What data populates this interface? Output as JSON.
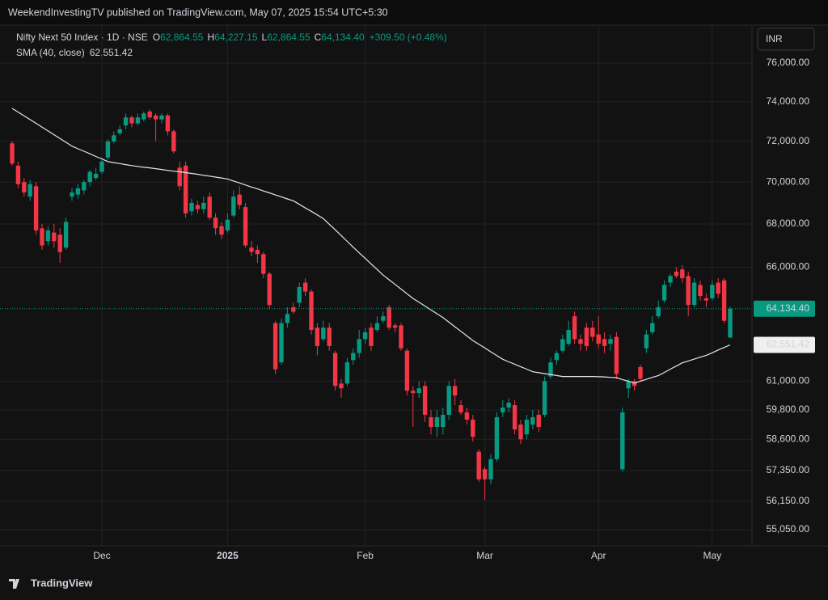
{
  "header": {
    "text": "WeekendInvestingTV published on TradingView.com, May 07, 2025 15:54 UTC+5:30"
  },
  "footer": {
    "brand": "TradingView"
  },
  "chart_data": {
    "type": "candlestick",
    "title": "Nifty Next 50 Index · 1D · NSE",
    "ohlc_legend": [
      {
        "key": "O",
        "value": "62,864.55"
      },
      {
        "key": "H",
        "value": "64,227.15"
      },
      {
        "key": "L",
        "value": "62,864.55"
      },
      {
        "key": "C",
        "value": "64,134.40"
      }
    ],
    "change": "+309.50 (+0.48%)",
    "currency": "INR",
    "up_color": "#089981",
    "down_color": "#f23645",
    "log_scale": true,
    "grid": true,
    "ylim": [
      54440,
      77980
    ],
    "yticks": [
      {
        "value": 76000,
        "label": "76,000.00"
      },
      {
        "value": 74000,
        "label": "74,000.00"
      },
      {
        "value": 72000,
        "label": "72,000.00"
      },
      {
        "value": 70000,
        "label": "70,000.00"
      },
      {
        "value": 68000,
        "label": "68,000.00"
      },
      {
        "value": 66000,
        "label": "66,000.00"
      },
      {
        "value": 61000,
        "label": "61,000.00"
      },
      {
        "value": 59800,
        "label": "59,800.00"
      },
      {
        "value": 58600,
        "label": "58,600.00"
      },
      {
        "value": 57350,
        "label": "57,350.00"
      },
      {
        "value": 56150,
        "label": "56,150.00"
      },
      {
        "value": 55050,
        "label": "55,050.00"
      }
    ],
    "categories": [
      null,
      null,
      null,
      null,
      null,
      null,
      null,
      null,
      null,
      null,
      null,
      null,
      null,
      null,
      null,
      "Dec",
      null,
      null,
      null,
      null,
      null,
      null,
      null,
      null,
      null,
      null,
      null,
      null,
      null,
      null,
      null,
      null,
      null,
      null,
      null,
      null,
      "2025",
      null,
      null,
      null,
      null,
      null,
      null,
      null,
      null,
      null,
      null,
      null,
      null,
      null,
      null,
      null,
      null,
      null,
      null,
      null,
      null,
      null,
      null,
      "Feb",
      null,
      null,
      null,
      null,
      null,
      null,
      null,
      null,
      null,
      null,
      null,
      null,
      null,
      null,
      null,
      null,
      null,
      null,
      null,
      "Mar",
      null,
      null,
      null,
      null,
      null,
      null,
      null,
      null,
      null,
      null,
      null,
      null,
      null,
      null,
      null,
      null,
      null,
      null,
      "Apr",
      null,
      null,
      null,
      null,
      null,
      null,
      null,
      null,
      null,
      null,
      null,
      null,
      null,
      null,
      null,
      null,
      null,
      null,
      "May",
      null,
      null,
      null
    ],
    "open": [
      71900,
      70800,
      70000,
      69300,
      69800,
      67800,
      67200,
      67600,
      67500,
      66900,
      69300,
      69400,
      69600,
      70000,
      70200,
      70500,
      71200,
      72000,
      72400,
      72800,
      73200,
      72900,
      73100,
      73500,
      73300,
      73100,
      73300,
      72500,
      70700,
      70800,
      68600,
      68900,
      68700,
      69300,
      68300,
      67900,
      67700,
      68400,
      69400,
      68800,
      66900,
      66800,
      66600,
      65700,
      63500,
      61800,
      63500,
      64200,
      64400,
      65300,
      64900,
      63300,
      62800,
      63300,
      62200,
      60900,
      60900,
      61900,
      62200,
      62800,
      63300,
      63200,
      63600,
      64200,
      63400,
      63400,
      62300,
      60600,
      60500,
      60800,
      59500,
      59100,
      59100,
      59600,
      60800,
      60000,
      59700,
      59400,
      58100,
      57400,
      57000,
      57800,
      59700,
      59900,
      60000,
      59200,
      58800,
      59200,
      59600,
      59600,
      61200,
      61900,
      62300,
      62600,
      63800,
      62800,
      63300,
      63300,
      63000,
      62800,
      62600,
      62900,
      57400,
      60700,
      61000,
      61600,
      62400,
      63100,
      63800,
      64500,
      65300,
      65800,
      65900,
      65600,
      64300,
      65200,
      64600,
      64600,
      65300,
      65400,
      62864.55
    ],
    "high": [
      72000,
      71000,
      70200,
      70100,
      70000,
      68000,
      67900,
      68000,
      67800,
      68300,
      69700,
      69900,
      70100,
      70600,
      70700,
      71200,
      72100,
      72500,
      72800,
      73400,
      73300,
      73400,
      73500,
      73600,
      73400,
      73400,
      73400,
      72600,
      71000,
      71000,
      69200,
      69100,
      69300,
      69500,
      68500,
      68100,
      68500,
      69600,
      69800,
      69000,
      67200,
      67000,
      66700,
      65800,
      63600,
      63700,
      64200,
      64400,
      65300,
      65500,
      65000,
      63500,
      63600,
      63500,
      62300,
      61100,
      62000,
      62400,
      63200,
      63300,
      63500,
      63800,
      64000,
      64300,
      63500,
      63500,
      62400,
      60800,
      61000,
      61000,
      59800,
      59800,
      59900,
      61000,
      61100,
      60200,
      59900,
      59600,
      58200,
      57500,
      58000,
      59700,
      60200,
      60300,
      60200,
      59400,
      59600,
      59800,
      59800,
      61200,
      62000,
      62300,
      63000,
      63600,
      64000,
      63000,
      63500,
      63600,
      63800,
      63100,
      63000,
      63100,
      59900,
      61100,
      61100,
      61700,
      63200,
      63800,
      64500,
      65400,
      65700,
      66000,
      66100,
      65800,
      65500,
      65400,
      64800,
      65400,
      65500,
      65500,
      64227.15
    ],
    "low": [
      70800,
      69700,
      69300,
      69100,
      67500,
      66800,
      67000,
      66900,
      66200,
      66800,
      69100,
      69200,
      69400,
      69800,
      70100,
      70400,
      71100,
      71900,
      72300,
      72600,
      72700,
      72800,
      73000,
      73100,
      72000,
      72900,
      72300,
      71400,
      69600,
      68300,
      68400,
      68500,
      68500,
      68200,
      67500,
      67300,
      67600,
      68300,
      68700,
      66900,
      66500,
      66200,
      65500,
      64100,
      61300,
      61700,
      63300,
      63900,
      64200,
      64700,
      63000,
      62100,
      62700,
      62300,
      60600,
      60300,
      60800,
      61700,
      62000,
      62600,
      62300,
      63100,
      63500,
      63200,
      63100,
      62300,
      60400,
      59100,
      60300,
      59300,
      58800,
      58700,
      58800,
      59400,
      60000,
      59600,
      59200,
      58500,
      56900,
      56200,
      56800,
      57700,
      59500,
      59700,
      58800,
      58400,
      58600,
      59000,
      58900,
      59500,
      61100,
      61700,
      62200,
      62500,
      62600,
      62300,
      62300,
      62700,
      62400,
      62200,
      62300,
      61100,
      57300,
      60300,
      60600,
      61000,
      62200,
      63000,
      63700,
      64400,
      65100,
      65500,
      65300,
      63800,
      64200,
      64500,
      64200,
      64500,
      64600,
      63500,
      62864.55
    ],
    "close": [
      70900,
      69900,
      69500,
      69900,
      67700,
      67000,
      67700,
      67200,
      66700,
      68100,
      69500,
      69700,
      70000,
      70500,
      70400,
      71000,
      72000,
      72300,
      72600,
      73200,
      72900,
      73200,
      73400,
      73200,
      73100,
      73300,
      72500,
      71500,
      69800,
      68500,
      69000,
      68700,
      69000,
      68300,
      67800,
      67500,
      68200,
      69300,
      68900,
      67000,
      66700,
      66600,
      65700,
      64300,
      61500,
      63500,
      63900,
      64000,
      65100,
      64900,
      63200,
      62500,
      63300,
      62500,
      60800,
      60700,
      61800,
      62200,
      62800,
      63100,
      62500,
      63500,
      63800,
      63300,
      63300,
      62400,
      60600,
      60500,
      60700,
      59600,
      59100,
      59500,
      59600,
      60800,
      60400,
      59700,
      59400,
      58700,
      57000,
      57000,
      57800,
      59500,
      59900,
      60100,
      59000,
      58600,
      59400,
      59500,
      59100,
      61000,
      61800,
      62200,
      62800,
      63200,
      62800,
      62600,
      62500,
      62900,
      62600,
      62500,
      62800,
      61300,
      59700,
      61000,
      60800,
      61100,
      63000,
      63500,
      64200,
      65200,
      65600,
      65600,
      65500,
      64300,
      65300,
      64700,
      64500,
      65200,
      64800,
      63600,
      64134.4
    ],
    "sma": {
      "name": "SMA (40, close)",
      "value_label": "62,551.42",
      "color": "#e6e6e6",
      "values": [
        73660,
        73470,
        73280,
        73090,
        72900,
        72710,
        72520,
        72330,
        72140,
        71950,
        71760,
        71630,
        71510,
        71380,
        71250,
        71130,
        71000,
        70950,
        70900,
        70850,
        70800,
        70760,
        70720,
        70690,
        70650,
        70610,
        70570,
        70530,
        70500,
        70460,
        70420,
        70380,
        70330,
        70290,
        70240,
        70200,
        70150,
        70050,
        69960,
        69860,
        69760,
        69670,
        69570,
        69480,
        69380,
        69290,
        69190,
        69100,
        68930,
        68760,
        68600,
        68430,
        68260,
        67990,
        67730,
        67460,
        67190,
        66920,
        66660,
        66410,
        66150,
        65900,
        65640,
        65430,
        65220,
        65010,
        64800,
        64590,
        64420,
        64250,
        64080,
        63910,
        63740,
        63540,
        63340,
        63140,
        62940,
        62740,
        62580,
        62420,
        62250,
        62090,
        61930,
        61820,
        61720,
        61610,
        61510,
        61400,
        61360,
        61320,
        61280,
        61240,
        61200,
        61200,
        61200,
        61200,
        61200,
        61200,
        61190,
        61180,
        61160,
        61150,
        61070,
        61000,
        60920,
        61000,
        61080,
        61160,
        61240,
        61370,
        61510,
        61640,
        61780,
        61860,
        61940,
        62020,
        62100,
        62210,
        62330,
        62440,
        62551.42
      ]
    }
  }
}
